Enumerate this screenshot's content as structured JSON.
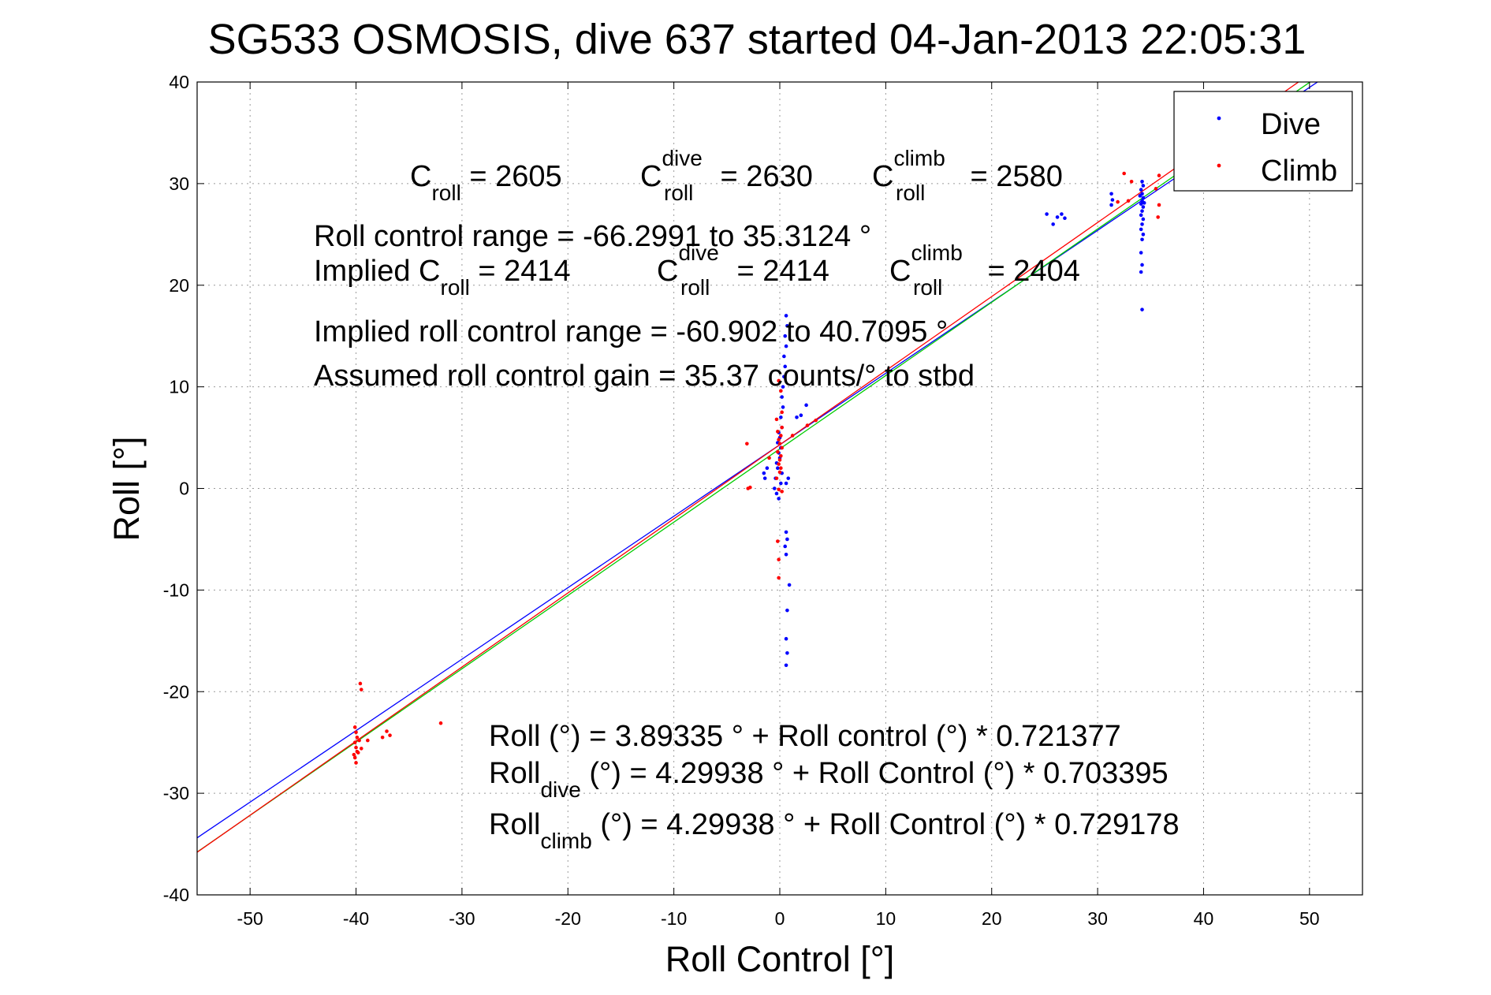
{
  "chart_data": {
    "type": "scatter",
    "title": "SG533 OSMOSIS, dive 637 started 04-Jan-2013 22:05:31",
    "xlabel": "Roll Control [°]",
    "ylabel": "Roll [°]",
    "xlim": [
      -55,
      55
    ],
    "ylim": [
      -40,
      40
    ],
    "xticks": [
      -50,
      -40,
      -30,
      -20,
      -10,
      0,
      10,
      20,
      30,
      40,
      50
    ],
    "yticks": [
      -40,
      -30,
      -20,
      -10,
      0,
      10,
      20,
      30,
      40
    ],
    "grid": true,
    "legend_position": "top-right",
    "series": [
      {
        "name": "Dive",
        "color": "#0000ff",
        "marker": "dot",
        "points": [
          [
            34.2,
            30.2
          ],
          [
            34.3,
            29.8
          ],
          [
            34.1,
            29.4
          ],
          [
            34.2,
            29.0
          ],
          [
            34.3,
            28.6
          ],
          [
            34.2,
            28.3
          ],
          [
            34.1,
            28.0
          ],
          [
            34.3,
            27.7
          ],
          [
            34.2,
            27.3
          ],
          [
            34.1,
            26.9
          ],
          [
            34.3,
            26.5
          ],
          [
            34.2,
            26.0
          ],
          [
            34.1,
            25.5
          ],
          [
            34.3,
            25.0
          ],
          [
            34.2,
            24.5
          ],
          [
            34.1,
            23.2
          ],
          [
            34.2,
            22.0
          ],
          [
            34.1,
            21.3
          ],
          [
            34.2,
            17.6
          ],
          [
            34.0,
            28.8
          ],
          [
            34.4,
            28.1
          ],
          [
            31.3,
            29.0
          ],
          [
            31.4,
            28.4
          ],
          [
            31.3,
            27.9
          ],
          [
            25.2,
            27.0
          ],
          [
            25.8,
            26.0
          ],
          [
            26.2,
            26.7
          ],
          [
            26.6,
            27.0
          ],
          [
            26.9,
            26.6
          ],
          [
            2.5,
            8.2
          ],
          [
            2.0,
            7.2
          ],
          [
            1.6,
            7.0
          ],
          [
            0.6,
            17.0
          ],
          [
            0.7,
            16.0
          ],
          [
            0.5,
            15.0
          ],
          [
            0.6,
            14.0
          ],
          [
            0.4,
            13.0
          ],
          [
            0.5,
            12.0
          ],
          [
            0.4,
            11.0
          ],
          [
            0.3,
            10.0
          ],
          [
            0.2,
            9.0
          ],
          [
            0.3,
            8.0
          ],
          [
            0.1,
            7.0
          ],
          [
            0.2,
            6.0
          ],
          [
            -0.1,
            5.5
          ],
          [
            0.0,
            5.0
          ],
          [
            -0.2,
            4.5
          ],
          [
            0.1,
            4.0
          ],
          [
            -0.1,
            3.5
          ],
          [
            0.0,
            3.0
          ],
          [
            -0.3,
            2.5
          ],
          [
            -0.2,
            2.0
          ],
          [
            0.2,
            1.5
          ],
          [
            -0.4,
            1.0
          ],
          [
            0.1,
            0.5
          ],
          [
            -0.5,
            0.0
          ],
          [
            -0.3,
            -0.5
          ],
          [
            -0.1,
            -1.0
          ],
          [
            -1.2,
            2.0
          ],
          [
            -1.5,
            1.5
          ],
          [
            -1.4,
            1.0
          ],
          [
            0.8,
            1.0
          ],
          [
            0.6,
            0.5
          ],
          [
            0.6,
            -4.3
          ],
          [
            0.7,
            -5.0
          ],
          [
            0.5,
            -5.7
          ],
          [
            0.6,
            -6.5
          ],
          [
            0.9,
            -9.5
          ],
          [
            0.7,
            -12.0
          ],
          [
            0.6,
            -14.8
          ],
          [
            0.7,
            -16.2
          ],
          [
            0.6,
            -17.4
          ]
        ]
      },
      {
        "name": "Climb",
        "color": "#ff0000",
        "marker": "dot",
        "points": [
          [
            35.8,
            30.8
          ],
          [
            35.5,
            29.5
          ],
          [
            35.8,
            27.9
          ],
          [
            35.7,
            26.7
          ],
          [
            32.5,
            31.0
          ],
          [
            33.2,
            30.2
          ],
          [
            32.9,
            28.3
          ],
          [
            31.9,
            28.2
          ],
          [
            3.4,
            6.7
          ],
          [
            2.6,
            6.2
          ],
          [
            1.2,
            5.2
          ],
          [
            -3.1,
            4.4
          ],
          [
            -2.8,
            0.1
          ],
          [
            -3.0,
            0.0
          ],
          [
            -0.3,
            1.0
          ],
          [
            -0.1,
            -0.1
          ],
          [
            0.2,
            -0.3
          ],
          [
            -1.0,
            3.0
          ],
          [
            0.2,
            6.0
          ],
          [
            -0.2,
            5.6
          ],
          [
            0.1,
            5.2
          ],
          [
            -0.1,
            4.8
          ],
          [
            0.0,
            4.4
          ],
          [
            0.2,
            4.0
          ],
          [
            -0.2,
            3.6
          ],
          [
            0.1,
            3.2
          ],
          [
            0.0,
            2.8
          ],
          [
            -0.1,
            2.4
          ],
          [
            0.1,
            2.0
          ],
          [
            0.0,
            1.6
          ],
          [
            0.2,
            7.5
          ],
          [
            -0.3,
            6.8
          ],
          [
            0.1,
            9.6
          ],
          [
            -0.1,
            10.6
          ],
          [
            -0.2,
            -5.2
          ],
          [
            -0.1,
            -7.0
          ],
          [
            -0.1,
            -8.8
          ],
          [
            -40.1,
            -23.5
          ],
          [
            -40.0,
            -24.0
          ],
          [
            -39.9,
            -24.5
          ],
          [
            -40.1,
            -25.0
          ],
          [
            -40.0,
            -25.5
          ],
          [
            -39.8,
            -26.0
          ],
          [
            -40.1,
            -26.5
          ],
          [
            -40.0,
            -27.0
          ],
          [
            -39.7,
            -24.8
          ],
          [
            -39.5,
            -25.6
          ],
          [
            -39.9,
            -25.9
          ],
          [
            -40.2,
            -26.2
          ],
          [
            -39.6,
            -19.2
          ],
          [
            -39.5,
            -19.8
          ],
          [
            -38.9,
            -24.8
          ],
          [
            -37.5,
            -24.5
          ],
          [
            -37.1,
            -23.9
          ],
          [
            -36.8,
            -24.3
          ],
          [
            -32.0,
            -23.1
          ]
        ]
      }
    ],
    "fit_lines": [
      {
        "color": "#0000ff",
        "intercept": 4.29938,
        "slope": 0.703395
      },
      {
        "color": "#00cc00",
        "intercept": 3.89335,
        "slope": 0.721377
      },
      {
        "color": "#ff0000",
        "intercept": 4.29938,
        "slope": 0.729178
      }
    ]
  },
  "annotations": {
    "c_roll": {
      "base": "C",
      "sub": "roll",
      "value": " = 2605"
    },
    "c_roll_dive": {
      "base": "C",
      "sup": "dive",
      "sub": "roll",
      "value": " = 2630"
    },
    "c_roll_climb": {
      "base": "C",
      "sup": "climb",
      "sub": "roll",
      "value": " = 2580"
    },
    "range": "Roll control range = -66.2991 to 35.3124 °",
    "implied_c_roll": {
      "prefix": "Implied C",
      "sub": "roll",
      "value": " = 2414"
    },
    "implied_c_roll_dive": {
      "base": "C",
      "sup": "dive",
      "sub": "roll",
      "value": " = 2414"
    },
    "implied_c_roll_climb": {
      "base": "C",
      "sup": "climb",
      "sub": "roll",
      "value": " = 2404"
    },
    "implied_range": "Implied roll control range = -60.902 to 40.7095 °",
    "gain": "Assumed roll control gain = 35.37 counts/° to stbd",
    "fit_all": "Roll (°) = 3.89335 ° + Roll control (°) * 0.721377",
    "fit_dive": {
      "base": "Roll",
      "sub": "dive",
      "rest": " (°) = 4.29938 ° + Roll Control (°) * 0.703395"
    },
    "fit_climb": {
      "base": "Roll",
      "sub": "climb",
      "rest": " (°) = 4.29938 ° + Roll Control (°) * 0.729178"
    }
  }
}
